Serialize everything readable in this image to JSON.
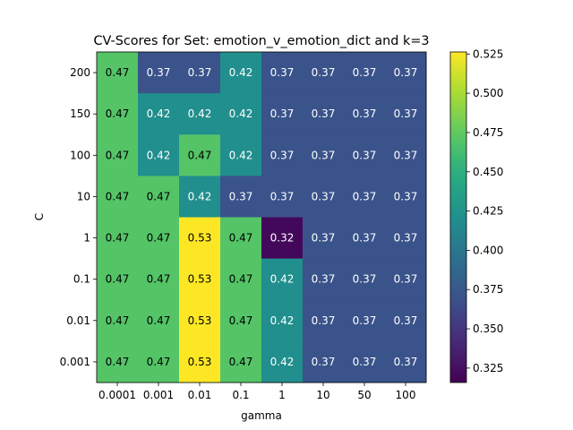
{
  "chart_data": {
    "type": "heatmap",
    "title": "CV-Scores for Set: emotion_v_emotion_dict and k=3",
    "xlabel": "gamma",
    "ylabel": "C",
    "x_categories": [
      "0.0001",
      "0.001",
      "0.01",
      "0.1",
      "1",
      "10",
      "50",
      "100"
    ],
    "y_categories": [
      "200",
      "150",
      "100",
      "10",
      "1",
      "0.1",
      "0.01",
      "0.001"
    ],
    "values": [
      [
        0.47,
        0.37,
        0.37,
        0.42,
        0.37,
        0.37,
        0.37,
        0.37
      ],
      [
        0.47,
        0.42,
        0.42,
        0.42,
        0.37,
        0.37,
        0.37,
        0.37
      ],
      [
        0.47,
        0.42,
        0.47,
        0.42,
        0.37,
        0.37,
        0.37,
        0.37
      ],
      [
        0.47,
        0.47,
        0.42,
        0.37,
        0.37,
        0.37,
        0.37,
        0.37
      ],
      [
        0.47,
        0.47,
        0.53,
        0.47,
        0.32,
        0.37,
        0.37,
        0.37
      ],
      [
        0.47,
        0.47,
        0.53,
        0.47,
        0.42,
        0.37,
        0.37,
        0.37
      ],
      [
        0.47,
        0.47,
        0.53,
        0.47,
        0.42,
        0.37,
        0.37,
        0.37
      ],
      [
        0.47,
        0.47,
        0.53,
        0.47,
        0.42,
        0.37,
        0.37,
        0.37
      ]
    ],
    "cell_labels": [
      [
        "0.47",
        "0.37",
        "0.37",
        "0.42",
        "0.37",
        "0.37",
        "0.37",
        "0.37"
      ],
      [
        "0.47",
        "0.42",
        "0.42",
        "0.42",
        "0.37",
        "0.37",
        "0.37",
        "0.37"
      ],
      [
        "0.47",
        "0.42",
        "0.47",
        "0.42",
        "0.37",
        "0.37",
        "0.37",
        "0.37"
      ],
      [
        "0.47",
        "0.47",
        "0.42",
        "0.37",
        "0.37",
        "0.37",
        "0.37",
        "0.37"
      ],
      [
        "0.47",
        "0.47",
        "0.53",
        "0.47",
        "0.32",
        "0.37",
        "0.37",
        "0.37"
      ],
      [
        "0.47",
        "0.47",
        "0.53",
        "0.47",
        "0.42",
        "0.37",
        "0.37",
        "0.37"
      ],
      [
        "0.47",
        "0.47",
        "0.53",
        "0.47",
        "0.42",
        "0.37",
        "0.37",
        "0.37"
      ],
      [
        "0.47",
        "0.47",
        "0.53",
        "0.47",
        "0.42",
        "0.37",
        "0.37",
        "0.37"
      ]
    ],
    "colorscale": "viridis",
    "colorbar": {
      "range": [
        0.3158,
        0.5263
      ],
      "ticks": [
        0.325,
        0.35,
        0.375,
        0.4,
        0.425,
        0.45,
        0.475,
        0.5,
        0.525
      ],
      "tick_labels": [
        "0.325",
        "0.350",
        "0.375",
        "0.400",
        "0.425",
        "0.450",
        "0.475",
        "0.500",
        "0.525"
      ]
    },
    "grid": false
  }
}
